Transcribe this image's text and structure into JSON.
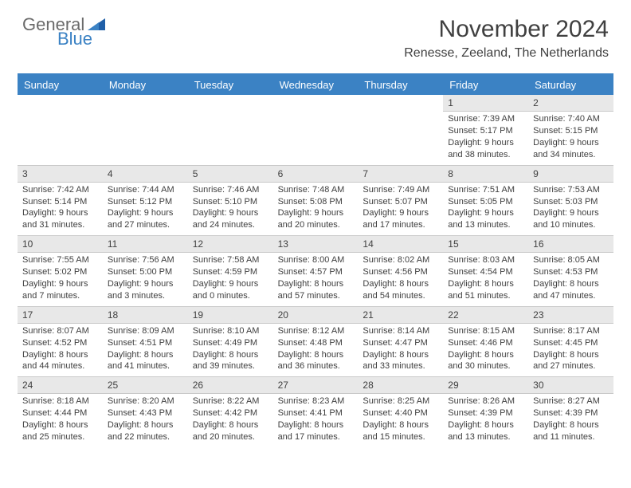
{
  "logo": {
    "word1": "General",
    "word2": "Blue"
  },
  "title": "November 2024",
  "location": "Renesse, Zeeland, The Netherlands",
  "colors": {
    "header_bg": "#3b82c4",
    "header_text": "#ffffff",
    "daynum_bg": "#e8e8e8",
    "border": "#c9c9c9",
    "text": "#404040",
    "logo_gray": "#6b6b6b",
    "logo_blue": "#3b82c4"
  },
  "day_names": [
    "Sunday",
    "Monday",
    "Tuesday",
    "Wednesday",
    "Thursday",
    "Friday",
    "Saturday"
  ],
  "weeks": [
    [
      {
        "empty": true
      },
      {
        "empty": true
      },
      {
        "empty": true
      },
      {
        "empty": true
      },
      {
        "empty": true
      },
      {
        "day": "1",
        "sunrise": "Sunrise: 7:39 AM",
        "sunset": "Sunset: 5:17 PM",
        "daylight": "Daylight: 9 hours and 38 minutes."
      },
      {
        "day": "2",
        "sunrise": "Sunrise: 7:40 AM",
        "sunset": "Sunset: 5:15 PM",
        "daylight": "Daylight: 9 hours and 34 minutes."
      }
    ],
    [
      {
        "day": "3",
        "sunrise": "Sunrise: 7:42 AM",
        "sunset": "Sunset: 5:14 PM",
        "daylight": "Daylight: 9 hours and 31 minutes."
      },
      {
        "day": "4",
        "sunrise": "Sunrise: 7:44 AM",
        "sunset": "Sunset: 5:12 PM",
        "daylight": "Daylight: 9 hours and 27 minutes."
      },
      {
        "day": "5",
        "sunrise": "Sunrise: 7:46 AM",
        "sunset": "Sunset: 5:10 PM",
        "daylight": "Daylight: 9 hours and 24 minutes."
      },
      {
        "day": "6",
        "sunrise": "Sunrise: 7:48 AM",
        "sunset": "Sunset: 5:08 PM",
        "daylight": "Daylight: 9 hours and 20 minutes."
      },
      {
        "day": "7",
        "sunrise": "Sunrise: 7:49 AM",
        "sunset": "Sunset: 5:07 PM",
        "daylight": "Daylight: 9 hours and 17 minutes."
      },
      {
        "day": "8",
        "sunrise": "Sunrise: 7:51 AM",
        "sunset": "Sunset: 5:05 PM",
        "daylight": "Daylight: 9 hours and 13 minutes."
      },
      {
        "day": "9",
        "sunrise": "Sunrise: 7:53 AM",
        "sunset": "Sunset: 5:03 PM",
        "daylight": "Daylight: 9 hours and 10 minutes."
      }
    ],
    [
      {
        "day": "10",
        "sunrise": "Sunrise: 7:55 AM",
        "sunset": "Sunset: 5:02 PM",
        "daylight": "Daylight: 9 hours and 7 minutes."
      },
      {
        "day": "11",
        "sunrise": "Sunrise: 7:56 AM",
        "sunset": "Sunset: 5:00 PM",
        "daylight": "Daylight: 9 hours and 3 minutes."
      },
      {
        "day": "12",
        "sunrise": "Sunrise: 7:58 AM",
        "sunset": "Sunset: 4:59 PM",
        "daylight": "Daylight: 9 hours and 0 minutes."
      },
      {
        "day": "13",
        "sunrise": "Sunrise: 8:00 AM",
        "sunset": "Sunset: 4:57 PM",
        "daylight": "Daylight: 8 hours and 57 minutes."
      },
      {
        "day": "14",
        "sunrise": "Sunrise: 8:02 AM",
        "sunset": "Sunset: 4:56 PM",
        "daylight": "Daylight: 8 hours and 54 minutes."
      },
      {
        "day": "15",
        "sunrise": "Sunrise: 8:03 AM",
        "sunset": "Sunset: 4:54 PM",
        "daylight": "Daylight: 8 hours and 51 minutes."
      },
      {
        "day": "16",
        "sunrise": "Sunrise: 8:05 AM",
        "sunset": "Sunset: 4:53 PM",
        "daylight": "Daylight: 8 hours and 47 minutes."
      }
    ],
    [
      {
        "day": "17",
        "sunrise": "Sunrise: 8:07 AM",
        "sunset": "Sunset: 4:52 PM",
        "daylight": "Daylight: 8 hours and 44 minutes."
      },
      {
        "day": "18",
        "sunrise": "Sunrise: 8:09 AM",
        "sunset": "Sunset: 4:51 PM",
        "daylight": "Daylight: 8 hours and 41 minutes."
      },
      {
        "day": "19",
        "sunrise": "Sunrise: 8:10 AM",
        "sunset": "Sunset: 4:49 PM",
        "daylight": "Daylight: 8 hours and 39 minutes."
      },
      {
        "day": "20",
        "sunrise": "Sunrise: 8:12 AM",
        "sunset": "Sunset: 4:48 PM",
        "daylight": "Daylight: 8 hours and 36 minutes."
      },
      {
        "day": "21",
        "sunrise": "Sunrise: 8:14 AM",
        "sunset": "Sunset: 4:47 PM",
        "daylight": "Daylight: 8 hours and 33 minutes."
      },
      {
        "day": "22",
        "sunrise": "Sunrise: 8:15 AM",
        "sunset": "Sunset: 4:46 PM",
        "daylight": "Daylight: 8 hours and 30 minutes."
      },
      {
        "day": "23",
        "sunrise": "Sunrise: 8:17 AM",
        "sunset": "Sunset: 4:45 PM",
        "daylight": "Daylight: 8 hours and 27 minutes."
      }
    ],
    [
      {
        "day": "24",
        "sunrise": "Sunrise: 8:18 AM",
        "sunset": "Sunset: 4:44 PM",
        "daylight": "Daylight: 8 hours and 25 minutes."
      },
      {
        "day": "25",
        "sunrise": "Sunrise: 8:20 AM",
        "sunset": "Sunset: 4:43 PM",
        "daylight": "Daylight: 8 hours and 22 minutes."
      },
      {
        "day": "26",
        "sunrise": "Sunrise: 8:22 AM",
        "sunset": "Sunset: 4:42 PM",
        "daylight": "Daylight: 8 hours and 20 minutes."
      },
      {
        "day": "27",
        "sunrise": "Sunrise: 8:23 AM",
        "sunset": "Sunset: 4:41 PM",
        "daylight": "Daylight: 8 hours and 17 minutes."
      },
      {
        "day": "28",
        "sunrise": "Sunrise: 8:25 AM",
        "sunset": "Sunset: 4:40 PM",
        "daylight": "Daylight: 8 hours and 15 minutes."
      },
      {
        "day": "29",
        "sunrise": "Sunrise: 8:26 AM",
        "sunset": "Sunset: 4:39 PM",
        "daylight": "Daylight: 8 hours and 13 minutes."
      },
      {
        "day": "30",
        "sunrise": "Sunrise: 8:27 AM",
        "sunset": "Sunset: 4:39 PM",
        "daylight": "Daylight: 8 hours and 11 minutes."
      }
    ]
  ]
}
